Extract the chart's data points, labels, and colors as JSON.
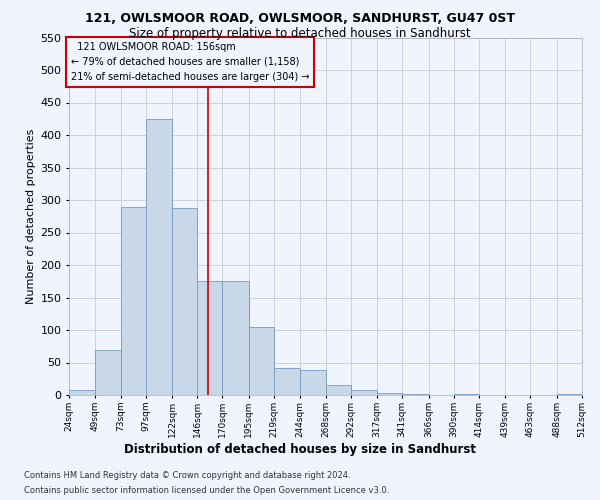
{
  "title1": "121, OWLSMOOR ROAD, OWLSMOOR, SANDHURST, GU47 0ST",
  "title2": "Size of property relative to detached houses in Sandhurst",
  "xlabel": "Distribution of detached houses by size in Sandhurst",
  "ylabel": "Number of detached properties",
  "annotation_line1": "  121 OWLSMOOR ROAD: 156sqm",
  "annotation_line2": "← 79% of detached houses are smaller (1,158)",
  "annotation_line3": "21% of semi-detached houses are larger (304) →",
  "footer1": "Contains HM Land Registry data © Crown copyright and database right 2024.",
  "footer2": "Contains public sector information licensed under the Open Government Licence v3.0.",
  "property_size": 156,
  "bin_edges": [
    24,
    49,
    73,
    97,
    122,
    146,
    170,
    195,
    219,
    244,
    268,
    292,
    317,
    341,
    366,
    390,
    414,
    439,
    463,
    488,
    512
  ],
  "bin_counts": [
    7,
    70,
    290,
    425,
    288,
    175,
    175,
    105,
    42,
    38,
    16,
    7,
    3,
    2,
    0,
    2,
    0,
    0,
    0,
    2
  ],
  "bar_color": "#c8d8e8",
  "bar_edge_color": "#7799bb",
  "vline_color": "#cc0000",
  "annotation_box_color": "#cc0000",
  "grid_color": "#cccccc",
  "bg_color": "#f0f4ff",
  "ylim": [
    0,
    550
  ],
  "yticks": [
    0,
    50,
    100,
    150,
    200,
    250,
    300,
    350,
    400,
    450,
    500,
    550
  ]
}
